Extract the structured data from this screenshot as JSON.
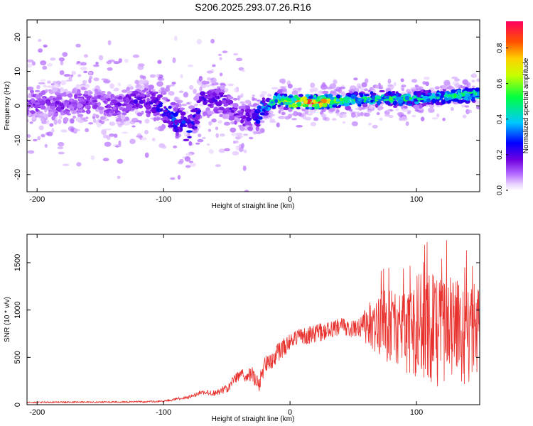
{
  "figure_title": "S206.2025.293.07.26.R16",
  "chart_data": [
    {
      "type": "heatmap",
      "title": "S206.2025.293.07.26.R16",
      "xlabel": "Height of straight line (km)",
      "ylabel": "Frequency (Hz)",
      "xlim": [
        -208,
        150
      ],
      "ylim": [
        -25,
        25
      ],
      "x_ticks": [
        -200,
        -100,
        0,
        100
      ],
      "x_tick_labels": [
        "-200",
        "-100",
        "0",
        "100"
      ],
      "y_ticks": [
        -20,
        -10,
        0,
        10,
        20
      ],
      "y_tick_labels": [
        "-20",
        "-10",
        "0",
        "10",
        "20"
      ],
      "colorbar": {
        "label": "Normalized spectral amplitude",
        "range": [
          0,
          0.95
        ],
        "ticks": [
          0.0,
          0.2,
          0.4,
          0.6,
          0.8
        ],
        "tick_labels": [
          "0.0",
          "0.2",
          "0.4",
          "0.6",
          "0.8"
        ],
        "colors": [
          "#ffffff",
          "#e6ccff",
          "#b266ff",
          "#7000e0",
          "#0000ff",
          "#00c8ff",
          "#00ff40",
          "#c8ff00",
          "#ffd000",
          "#ff5000",
          "#ff0060"
        ]
      },
      "ridge": {
        "x": [
          -208,
          -180,
          -160,
          -140,
          -120,
          -110,
          -100,
          -90,
          -80,
          -75,
          -70,
          -60,
          -50,
          -40,
          -30,
          -20,
          -10,
          0,
          10,
          20,
          40,
          60,
          80,
          100,
          120,
          150
        ],
        "y": [
          1,
          0,
          1,
          0,
          1,
          1,
          -1,
          -4,
          -7,
          -4,
          2,
          2,
          1,
          -3,
          -4,
          -1,
          2,
          1,
          1,
          1,
          1.5,
          2,
          2,
          2,
          2.5,
          3.5
        ],
        "intensity": [
          0.15,
          0.15,
          0.15,
          0.15,
          0.2,
          0.2,
          0.25,
          0.3,
          0.3,
          0.25,
          0.2,
          0.2,
          0.2,
          0.15,
          0.2,
          0.4,
          0.55,
          0.7,
          0.85,
          0.9,
          0.55,
          0.5,
          0.5,
          0.45,
          0.45,
          0.5
        ]
      }
    },
    {
      "type": "line",
      "xlabel": "Height of straight line (km)",
      "ylabel": "SNR (10 * v/v)",
      "xlim": [
        -208,
        150
      ],
      "ylim": [
        0,
        1800
      ],
      "x_ticks": [
        -200,
        -100,
        0,
        100
      ],
      "x_tick_labels": [
        "-200",
        "-100",
        "0",
        "100"
      ],
      "y_ticks": [
        0,
        500,
        1000,
        1500
      ],
      "y_tick_labels": [
        "0",
        "500",
        "1000",
        "1500"
      ],
      "series": [
        {
          "name": "SNR",
          "color": "#e8312d",
          "envelope_x": [
            -208,
            -160,
            -120,
            -100,
            -90,
            -80,
            -70,
            -60,
            -50,
            -45,
            -40,
            -35,
            -30,
            -25,
            -20,
            -15,
            -10,
            0,
            10,
            20,
            30,
            40,
            50,
            55,
            60,
            65,
            70,
            80,
            90,
            100,
            110,
            120,
            130,
            140,
            150
          ],
          "envelope_y": [
            25,
            28,
            30,
            35,
            60,
            80,
            130,
            120,
            170,
            250,
            320,
            300,
            320,
            200,
            420,
            460,
            550,
            650,
            720,
            750,
            790,
            830,
            800,
            820,
            850,
            900,
            850,
            820,
            830,
            850,
            800,
            750,
            800,
            700,
            820
          ],
          "noise_amp_x": [
            -208,
            -100,
            -80,
            -60,
            -40,
            -30,
            -20,
            0,
            40,
            55,
            62,
            80,
            95,
            110,
            130,
            150
          ],
          "noise_amp_y": [
            8,
            10,
            20,
            30,
            60,
            80,
            90,
            100,
            90,
            90,
            300,
            400,
            550,
            600,
            550,
            500
          ]
        }
      ]
    }
  ]
}
